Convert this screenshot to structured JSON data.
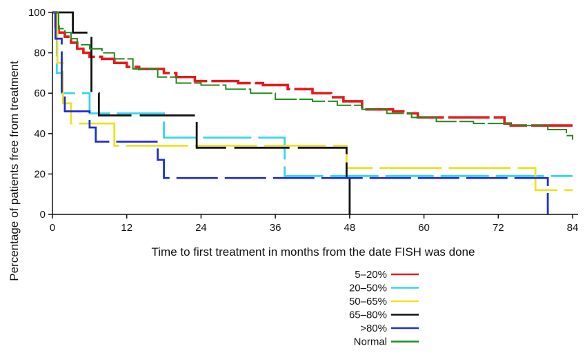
{
  "chart_data": {
    "type": "line",
    "title": "",
    "xlabel": "Time to first treatment in months from the date FISH was done",
    "ylabel": "Percentage of patients free from treatment",
    "xlim": [
      0,
      84
    ],
    "ylim": [
      0,
      100
    ],
    "xticks": [
      "0",
      "12",
      "24",
      "36",
      "48",
      "60",
      "72",
      "84"
    ],
    "yticks": [
      "0",
      "20",
      "40",
      "60",
      "80",
      "100"
    ],
    "grid": false,
    "legend_position": "below-center",
    "series": [
      {
        "name": "5–20%",
        "color": "#e41a1c",
        "points": [
          [
            0,
            100
          ],
          [
            0.5,
            93
          ],
          [
            1,
            90
          ],
          [
            2,
            88
          ],
          [
            3,
            85
          ],
          [
            4,
            82
          ],
          [
            5,
            80
          ],
          [
            6,
            78
          ],
          [
            8,
            77
          ],
          [
            10,
            75
          ],
          [
            12,
            73
          ],
          [
            14,
            72
          ],
          [
            17,
            72
          ],
          [
            18,
            70
          ],
          [
            20,
            68
          ],
          [
            23,
            66
          ],
          [
            27,
            66
          ],
          [
            30,
            65
          ],
          [
            34,
            64
          ],
          [
            38,
            62
          ],
          [
            42,
            60
          ],
          [
            45,
            58
          ],
          [
            47,
            56
          ],
          [
            50,
            52
          ],
          [
            55,
            51
          ],
          [
            57,
            50
          ],
          [
            59,
            48
          ],
          [
            65,
            48
          ],
          [
            73,
            45
          ],
          [
            74,
            44
          ],
          [
            84,
            44
          ]
        ]
      },
      {
        "name": "20–50%",
        "color": "#33d6f0",
        "points": [
          [
            0,
            100
          ],
          [
            0.7,
            70
          ],
          [
            1.5,
            60
          ],
          [
            5,
            60
          ],
          [
            6,
            50
          ],
          [
            17,
            50
          ],
          [
            18,
            38
          ],
          [
            37,
            38
          ],
          [
            37.5,
            19
          ],
          [
            84,
            19
          ]
        ]
      },
      {
        "name": "50–65%",
        "color": "#f0e21b",
        "points": [
          [
            0,
            100
          ],
          [
            0.8,
            75
          ],
          [
            1.7,
            55
          ],
          [
            3,
            45
          ],
          [
            9,
            45
          ],
          [
            10,
            34
          ],
          [
            47,
            34
          ],
          [
            47.5,
            23
          ],
          [
            77,
            23
          ],
          [
            78,
            12
          ],
          [
            84,
            12
          ]
        ]
      },
      {
        "name": "65–80%",
        "color": "#111111",
        "points": [
          [
            0,
            100
          ],
          [
            3,
            100
          ],
          [
            3.3,
            90
          ],
          [
            6,
            90
          ],
          [
            6.3,
            60
          ],
          [
            7,
            60
          ],
          [
            7.5,
            49
          ],
          [
            23,
            49
          ],
          [
            23.3,
            33
          ],
          [
            47,
            33
          ],
          [
            47.5,
            18
          ],
          [
            48,
            18
          ],
          [
            48,
            0
          ]
        ]
      },
      {
        "name": ">80%",
        "color": "#1f2fd4",
        "points": [
          [
            0,
            100
          ],
          [
            0.5,
            87
          ],
          [
            1.5,
            59
          ],
          [
            2,
            51
          ],
          [
            5,
            51
          ],
          [
            6,
            43
          ],
          [
            7,
            36
          ],
          [
            16,
            36
          ],
          [
            17,
            27
          ],
          [
            18,
            18
          ],
          [
            80,
            18
          ],
          [
            80,
            0
          ]
        ]
      },
      {
        "name": "Normal",
        "color": "#1e8c1e",
        "points": [
          [
            0,
            100
          ],
          [
            1,
            92
          ],
          [
            2,
            90
          ],
          [
            3,
            87
          ],
          [
            4,
            84
          ],
          [
            6,
            82
          ],
          [
            8,
            80
          ],
          [
            10,
            77
          ],
          [
            13,
            72
          ],
          [
            17,
            68
          ],
          [
            20,
            65
          ],
          [
            24,
            64
          ],
          [
            28,
            62
          ],
          [
            32,
            60
          ],
          [
            36,
            57
          ],
          [
            42,
            56
          ],
          [
            46,
            54
          ],
          [
            50,
            52
          ],
          [
            54,
            50
          ],
          [
            58,
            48
          ],
          [
            62,
            46
          ],
          [
            68,
            45
          ],
          [
            74,
            44
          ],
          [
            80,
            42
          ],
          [
            83,
            39
          ],
          [
            84,
            37
          ]
        ]
      }
    ]
  }
}
